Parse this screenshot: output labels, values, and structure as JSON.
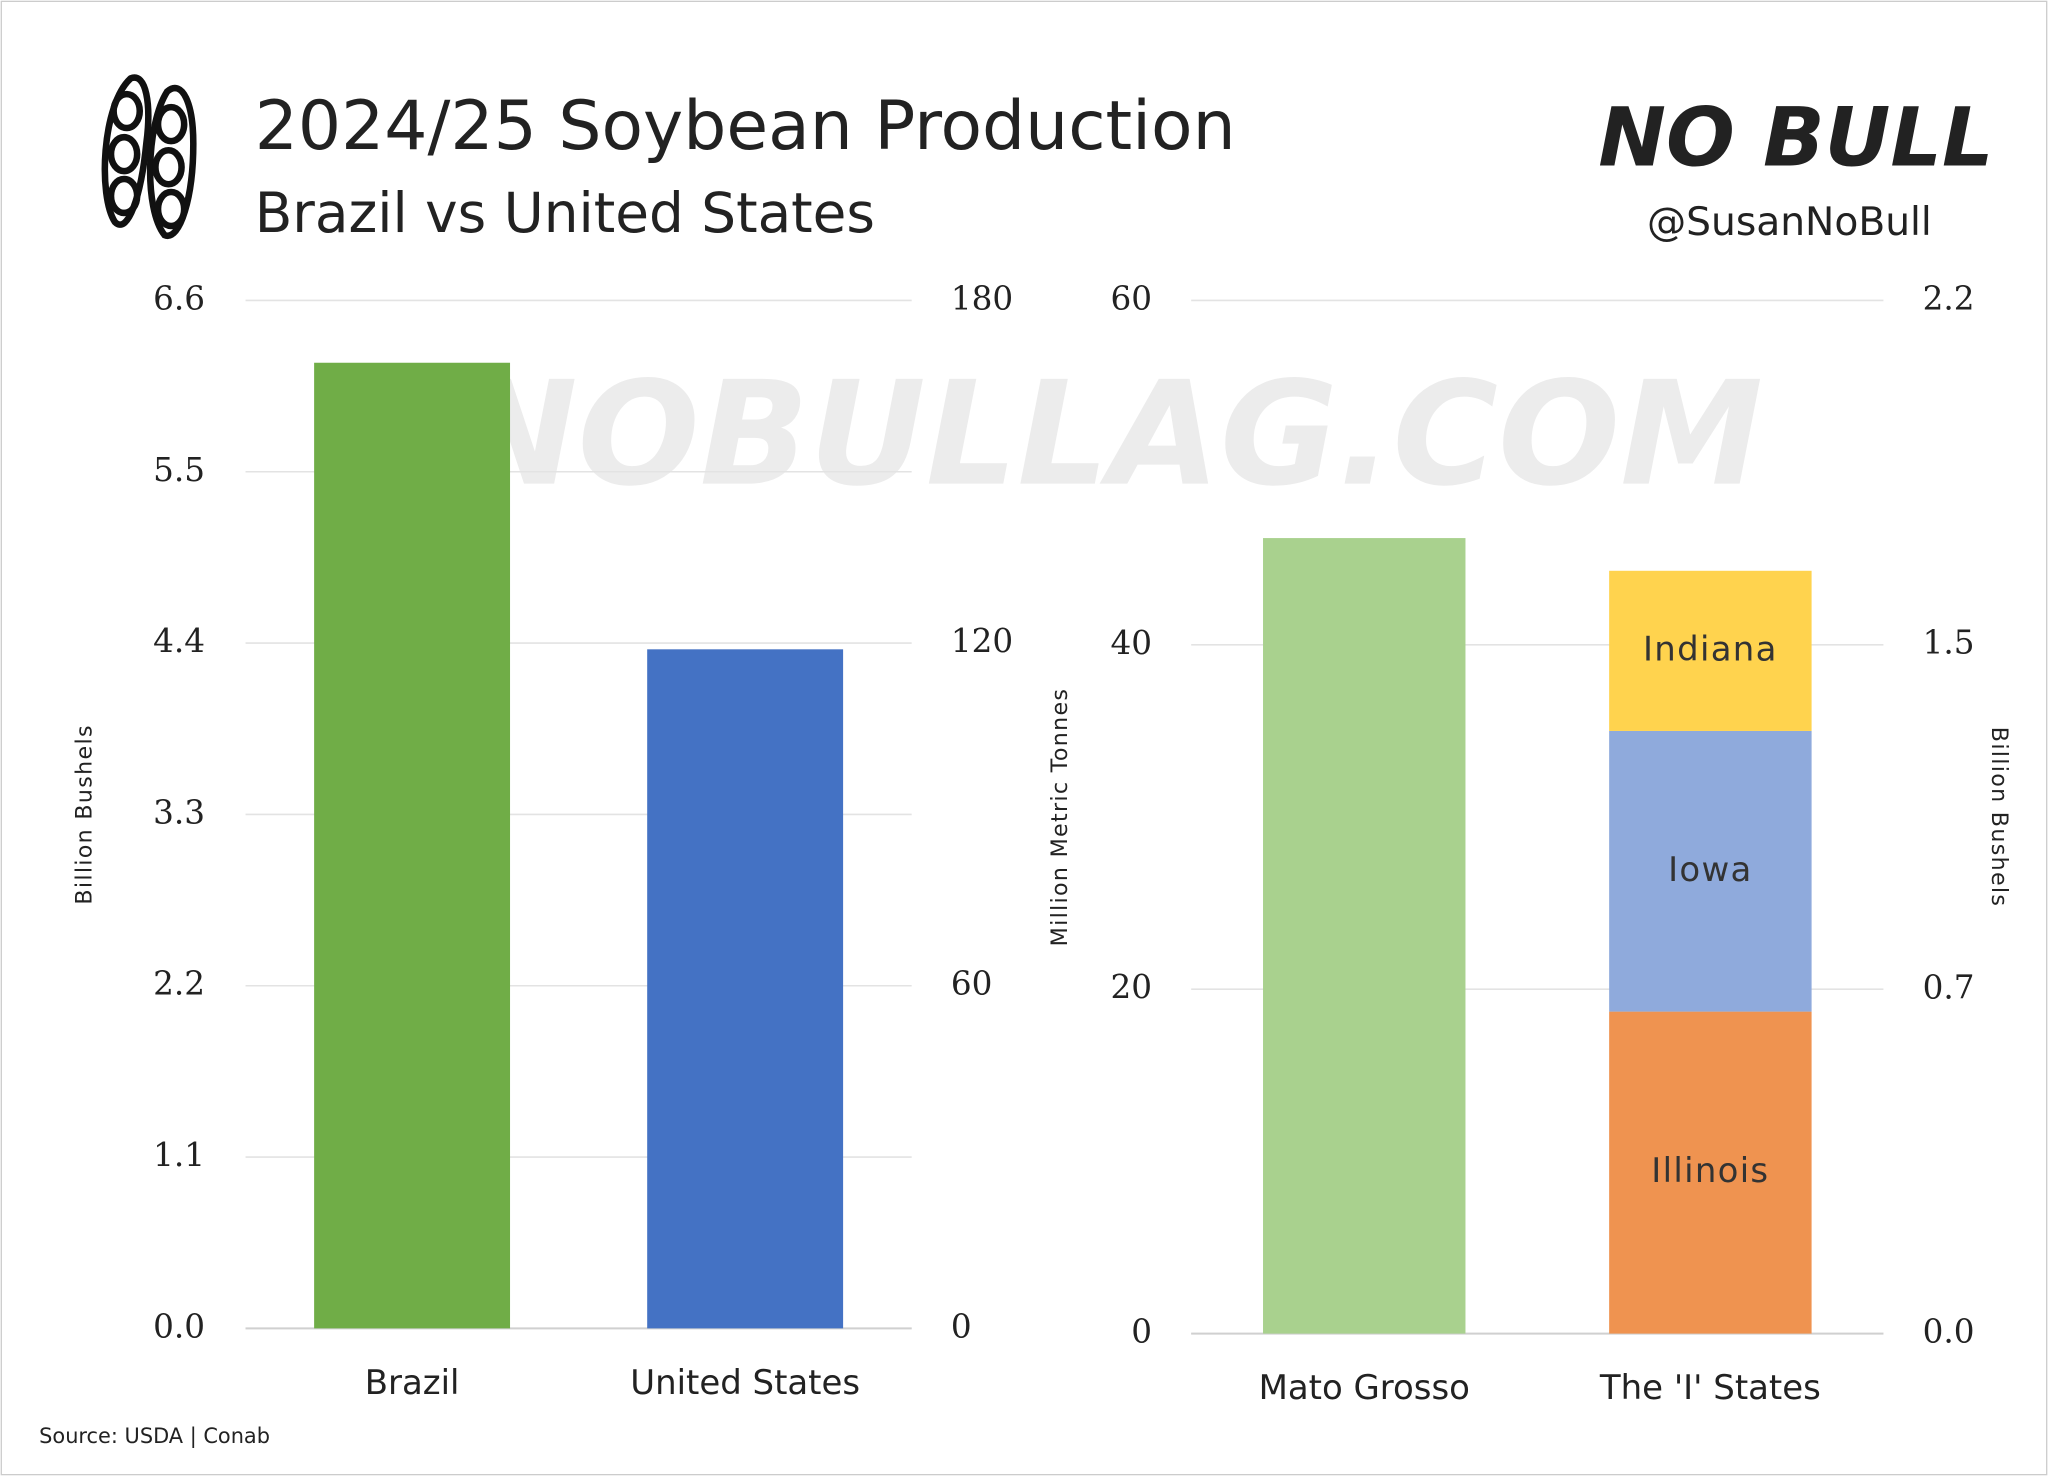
{
  "title": "2024/25 Soybean Production",
  "subtitle": "Brazil vs United States",
  "logo": "NO BULL",
  "handle": "@SusanNoBull",
  "watermark": "NOBULLAG.COM",
  "source": "Source: USDA | Conab",
  "chart_data": [
    {
      "type": "bar",
      "categories": [
        "Brazil",
        "United States"
      ],
      "values": [
        6.2,
        4.36
      ],
      "colors": [
        "#70ad47",
        "#4472c4"
      ],
      "ylabel": "Billion Bushels",
      "ylim": [
        0,
        6.6
      ],
      "yticks": [
        {
          "value": 0,
          "label": "0.0"
        },
        1.1,
        2.2,
        3.3,
        4.4,
        5.5,
        6.6
      ],
      "y2lim": [
        0,
        180
      ],
      "y2ticks": [
        0,
        60,
        120,
        180
      ],
      "grid": true
    },
    {
      "type": "stacked_bar",
      "categories": [
        "Mato Grosso",
        "The 'I' States"
      ],
      "series": [
        {
          "color": "#a9d18e",
          "values": [
            46.2,
            null
          ]
        },
        {
          "name": "Illinois",
          "color": "#ef9350",
          "values": [
            null,
            18.7
          ]
        },
        {
          "name": "Iowa",
          "color": "#8faadc",
          "values": [
            null,
            16.3
          ]
        },
        {
          "name": "Indiana",
          "color": "#ffd34e",
          "values": [
            null,
            9.3
          ]
        }
      ],
      "ylabel": "Million Metric Tonnes",
      "ylim": [
        0,
        60
      ],
      "yticks": [
        0,
        20,
        40,
        60
      ],
      "y2label": "Billion Bushels",
      "y2lim": [
        0,
        2.2
      ],
      "y2ticks": [
        {
          "value": 0,
          "label": "0.0"
        },
        {
          "value": 0.733,
          "label": "0.7"
        },
        {
          "value": 1.467,
          "label": "1.5"
        },
        2.2
      ],
      "grid": true
    }
  ]
}
